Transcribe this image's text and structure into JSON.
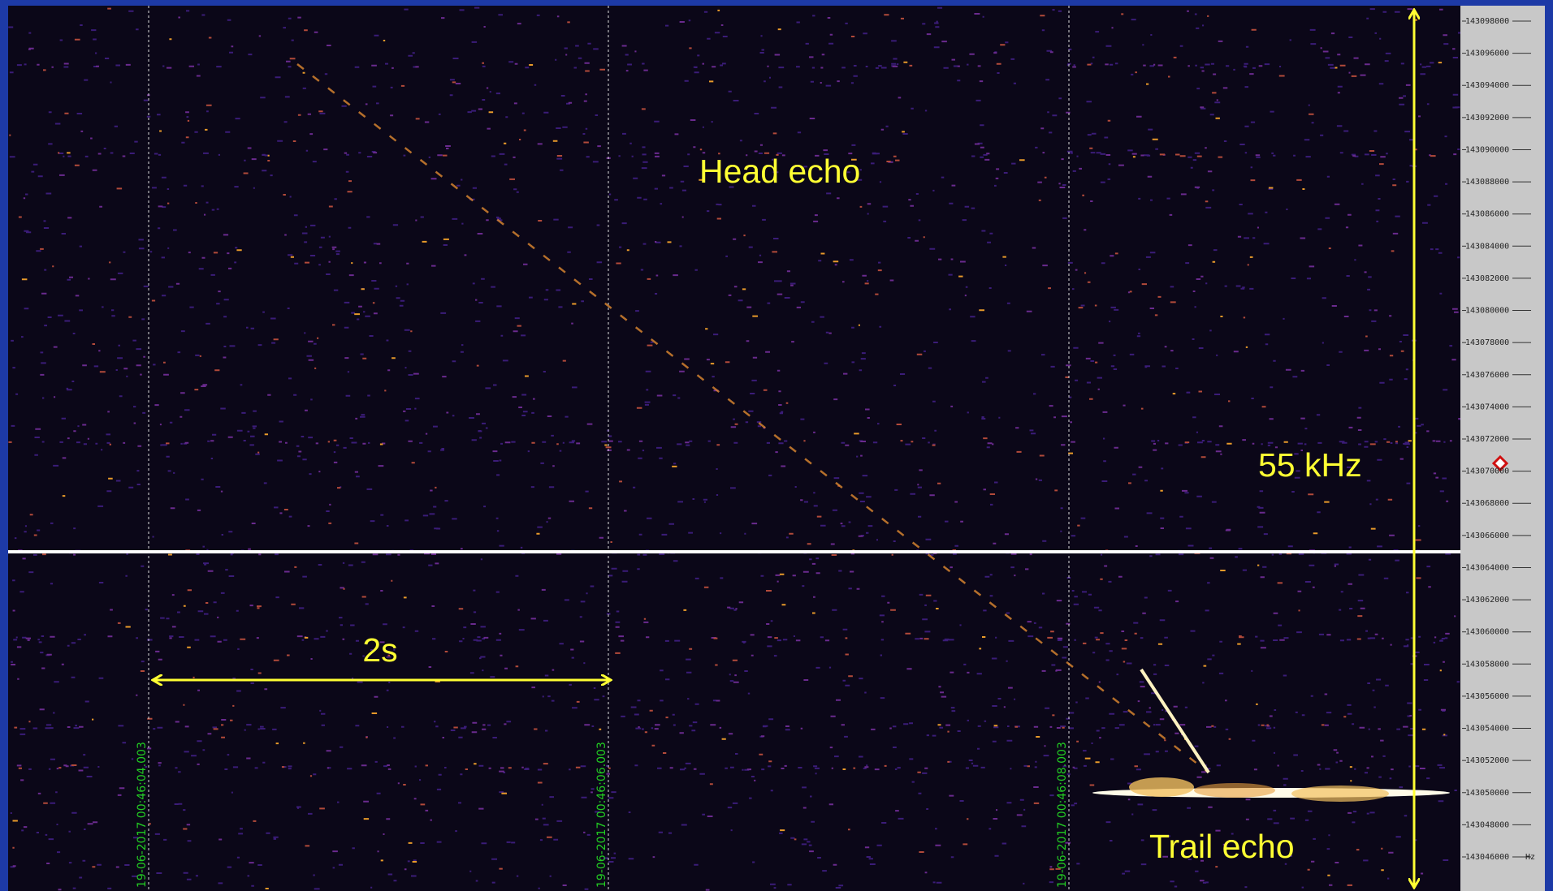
{
  "annotations": {
    "head_echo": "Head echo",
    "trail_echo": "Trail echo",
    "bandwidth": "55 kHz",
    "interval": "2s"
  },
  "frequency_axis": {
    "labels": [
      "143098000",
      "143096000",
      "143094000",
      "143092000",
      "143090000",
      "143088000",
      "143086000",
      "143084000",
      "143082000",
      "143080000",
      "143078000",
      "143076000",
      "143074000",
      "143072000",
      "143070000",
      "143068000",
      "143066000",
      "143064000",
      "143062000",
      "143060000",
      "143058000",
      "143056000",
      "143054000",
      "143052000",
      "143050000",
      "143048000",
      "143046000"
    ],
    "unit": "Hz"
  },
  "time_axis": {
    "labels": [
      "19-06-2017 00:46:04.003",
      "19-06-2017 00:46:06.003",
      "19-06-2017 00:46:08.003"
    ]
  }
}
